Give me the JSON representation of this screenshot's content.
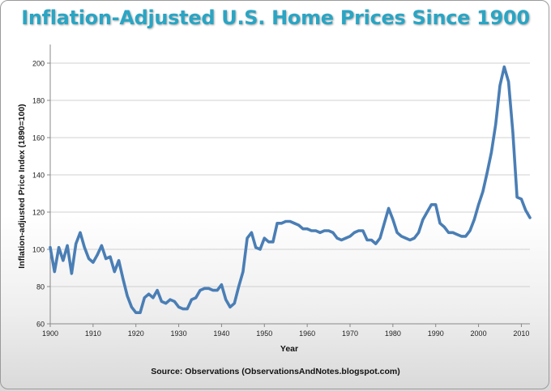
{
  "title": "Inflation-Adjusted U.S. Home Prices Since 1900",
  "source": "Source: Observations  (ObservationsAndNotes.blogspot.com)",
  "colors": {
    "title": "#2aa5c4",
    "line": "#4a7eb5",
    "grid": "#d0d0d0"
  },
  "chart_data": {
    "type": "line",
    "title": "Inflation-Adjusted U.S. Home Prices Since 1900",
    "xlabel": "Year",
    "ylabel": "Inflation-adjusted  Price Index (1890=100)",
    "xlim": [
      1900,
      2012
    ],
    "ylim": [
      60,
      210
    ],
    "xticks": [
      1900,
      1910,
      1920,
      1930,
      1940,
      1950,
      1960,
      1970,
      1980,
      1990,
      2000,
      2010
    ],
    "yticks": [
      60,
      80,
      100,
      120,
      140,
      160,
      180,
      200
    ],
    "grid": true,
    "legend": false,
    "x": [
      1900,
      1901,
      1902,
      1903,
      1904,
      1905,
      1906,
      1907,
      1908,
      1909,
      1910,
      1911,
      1912,
      1913,
      1914,
      1915,
      1916,
      1917,
      1918,
      1919,
      1920,
      1921,
      1922,
      1923,
      1924,
      1925,
      1926,
      1927,
      1928,
      1929,
      1930,
      1931,
      1932,
      1933,
      1934,
      1935,
      1936,
      1937,
      1938,
      1939,
      1940,
      1941,
      1942,
      1943,
      1944,
      1945,
      1946,
      1947,
      1948,
      1949,
      1950,
      1951,
      1952,
      1953,
      1954,
      1955,
      1956,
      1957,
      1958,
      1959,
      1960,
      1961,
      1962,
      1963,
      1964,
      1965,
      1966,
      1967,
      1968,
      1969,
      1970,
      1971,
      1972,
      1973,
      1974,
      1975,
      1976,
      1977,
      1978,
      1979,
      1980,
      1981,
      1982,
      1983,
      1984,
      1985,
      1986,
      1987,
      1988,
      1989,
      1990,
      1991,
      1992,
      1993,
      1994,
      1995,
      1996,
      1997,
      1998,
      1999,
      2000,
      2001,
      2002,
      2003,
      2004,
      2005,
      2006,
      2007,
      2008,
      2009,
      2010,
      2011,
      2012
    ],
    "y": [
      101,
      88,
      101,
      94,
      102,
      87,
      103,
      109,
      101,
      95,
      93,
      97,
      102,
      95,
      96,
      88,
      94,
      84,
      75,
      69,
      66,
      66,
      74,
      76,
      74,
      78,
      72,
      71,
      73,
      72,
      69,
      68,
      68,
      73,
      74,
      78,
      79,
      79,
      78,
      78,
      81,
      73,
      69,
      71,
      80,
      88,
      106,
      109,
      101,
      100,
      106,
      104,
      104,
      114,
      114,
      115,
      115,
      114,
      113,
      111,
      111,
      110,
      110,
      109,
      110,
      110,
      109,
      106,
      105,
      106,
      107,
      109,
      110,
      110,
      105,
      105,
      103,
      106,
      114,
      122,
      116,
      109,
      107,
      106,
      105,
      106,
      109,
      116,
      120,
      124,
      124,
      114,
      112,
      109,
      109,
      108,
      107,
      107,
      110,
      116,
      124,
      131,
      141,
      152,
      167,
      188,
      198,
      190,
      163,
      128,
      127,
      121,
      117
    ]
  }
}
